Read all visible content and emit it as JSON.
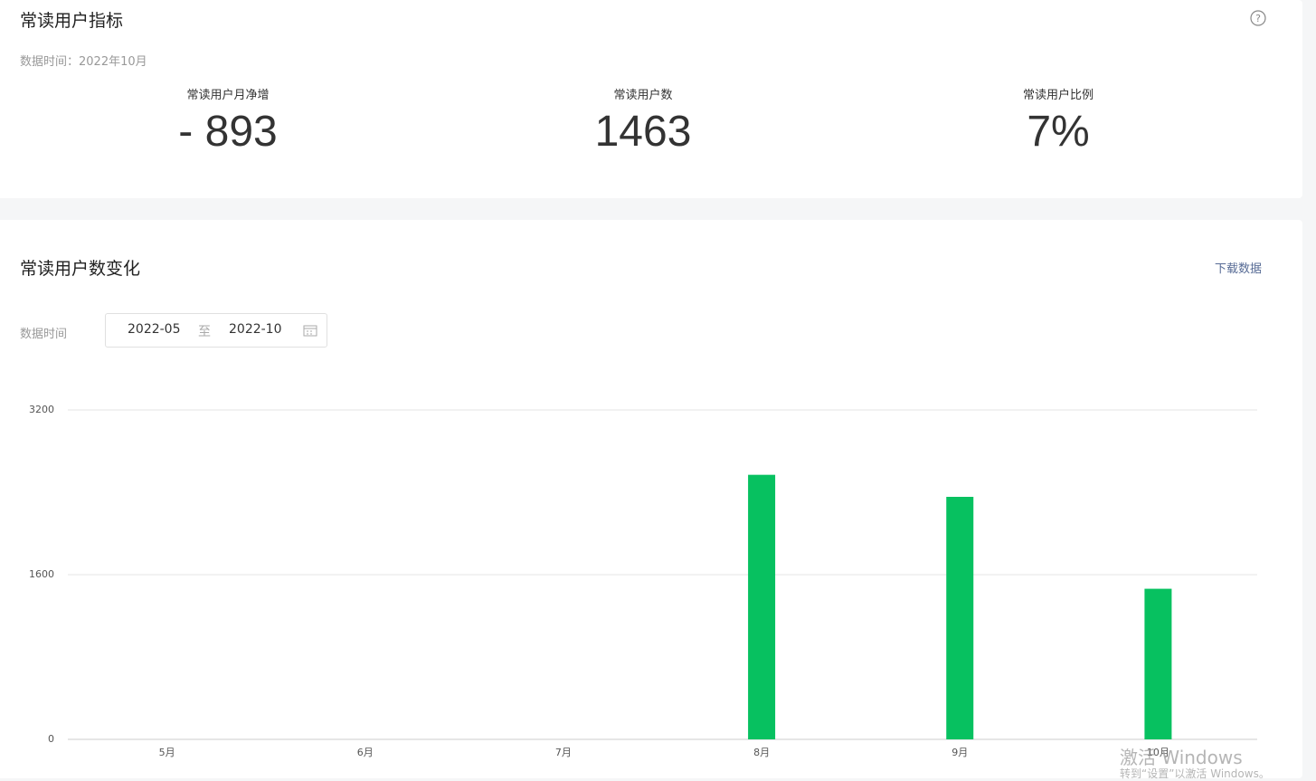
{
  "header": {
    "title": "常读用户指标",
    "date": "数据时间：2022年10月"
  },
  "metrics": [
    {
      "label": "常读用户月净增",
      "value": "- 893"
    },
    {
      "label": "常读用户数",
      "value": "1463"
    },
    {
      "label": "常读用户比例",
      "value": "7%"
    }
  ],
  "controls": {
    "date_label": "数据时间",
    "start": "2022-05",
    "separator": "至",
    "end": "2022-10",
    "download": "下载数据"
  },
  "watermark": {
    "line1": "激活 Windows",
    "line2": "转到“设置”以激活 Windows。"
  },
  "chart_data": {
    "type": "bar",
    "title": "常读用户数变化",
    "categories": [
      "5月",
      "6月",
      "7月",
      "8月",
      "9月",
      "10月"
    ],
    "values": [
      0,
      0,
      0,
      2570,
      2356,
      1463
    ],
    "color": "#07c160",
    "ylim": [
      0,
      3200
    ],
    "yticks": [
      0,
      1600,
      3200
    ],
    "grid": true
  }
}
